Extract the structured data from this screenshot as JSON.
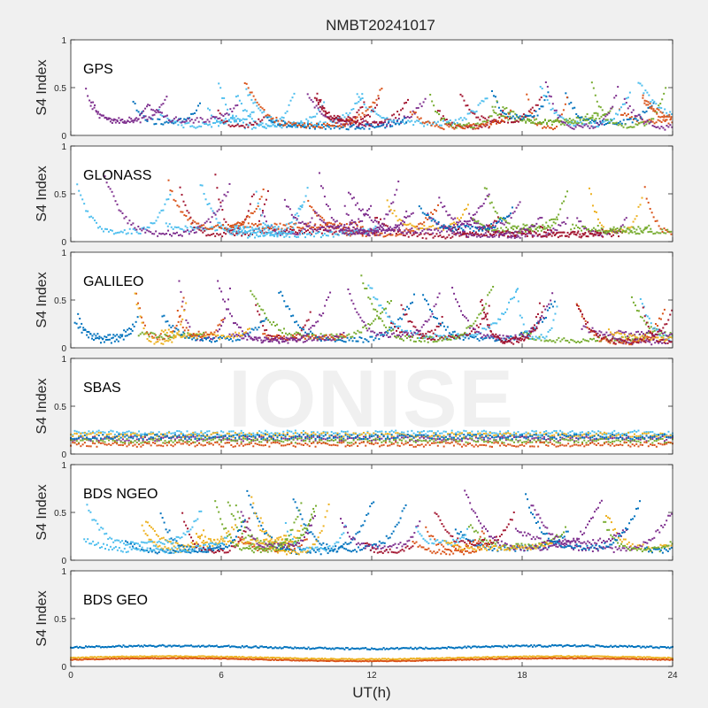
{
  "figure": {
    "title": "NMBT20241017",
    "watermark": "IONISE",
    "xlabel": "UT(h)",
    "xticks": [
      "0",
      "6",
      "12",
      "18",
      "24"
    ],
    "xlim": [
      0,
      24
    ]
  },
  "chart_data": [
    {
      "type": "scatter",
      "label": "GPS",
      "ylabel": "S4 Index",
      "ylim": [
        0,
        1
      ],
      "yticks": [
        "0",
        "0.5",
        "1"
      ],
      "baseline_range": [
        0.08,
        0.3
      ],
      "peak_max": 0.68,
      "peak_count": 34
    },
    {
      "type": "scatter",
      "label": "GLONASS",
      "ylabel": "S4 Index",
      "ylim": [
        0,
        1
      ],
      "yticks": [
        "0",
        "0.5",
        "1"
      ],
      "baseline_range": [
        0.06,
        0.28
      ],
      "peak_max": 0.72,
      "peak_count": 30
    },
    {
      "type": "scatter",
      "label": "GALILEO",
      "ylabel": "S4 Index",
      "ylim": [
        0,
        1
      ],
      "yticks": [
        "0",
        "0.5",
        "1"
      ],
      "baseline_range": [
        0.06,
        0.25
      ],
      "peak_max": 0.76,
      "peak_count": 26
    },
    {
      "type": "scatter",
      "label": "SBAS",
      "ylabel": "S4 Index",
      "ylim": [
        0,
        1
      ],
      "yticks": [
        "0",
        "0.5",
        "1"
      ],
      "baseline_range": [
        0.1,
        0.24
      ],
      "peak_max": 0.3,
      "peak_count": 0
    },
    {
      "type": "scatter",
      "label": "BDS NGEO",
      "ylabel": "S4 Index",
      "ylim": [
        0,
        1
      ],
      "yticks": [
        "0",
        "0.5",
        "1"
      ],
      "baseline_range": [
        0.08,
        0.3
      ],
      "peak_max": 0.75,
      "peak_count": 30
    },
    {
      "type": "scatter",
      "label": "BDS GEO",
      "ylabel": "S4 Index",
      "ylim": [
        0,
        1
      ],
      "yticks": [
        "0",
        "0.5",
        "1"
      ],
      "baseline_range": [
        0.05,
        0.2
      ],
      "peak_max": 0.25,
      "peak_count": 0
    }
  ],
  "colors": {
    "series": [
      "#0072BD",
      "#D95319",
      "#EDB120",
      "#7E2F8E",
      "#77AC30",
      "#4DBEEE",
      "#A2142F"
    ],
    "axes_bg": "#ffffff",
    "figure_bg": "#f0f0f0",
    "watermark": "#e8e8e8",
    "axis": "#262626"
  }
}
